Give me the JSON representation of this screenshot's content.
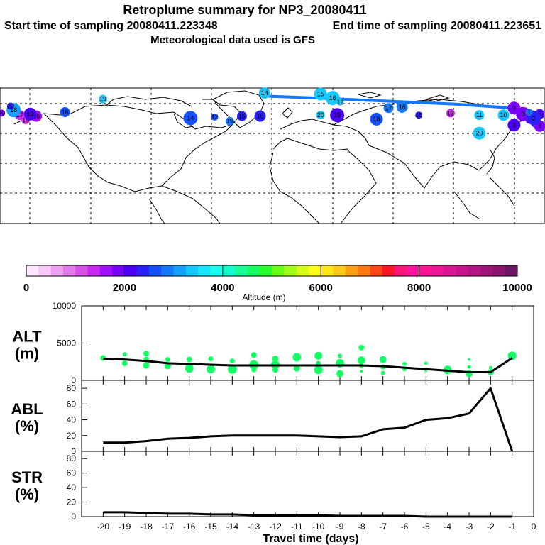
{
  "header": {
    "title": "Retroplume summary for NP3_20080411",
    "start_label": "Start time of sampling 20080411.223348",
    "end_label": "End time of sampling 20080411.223651",
    "met_label": "Meteorological data used is GFS"
  },
  "colorbar": {
    "label": "Altitude (m)",
    "ticks": [
      "0",
      "2000",
      "4000",
      "6000",
      "8000",
      "10000"
    ],
    "colors": [
      "#ffe6ff",
      "#f8c8f8",
      "#f0a0f0",
      "#e678ee",
      "#d850ea",
      "#c828f0",
      "#a010f8",
      "#7a00ff",
      "#4a00f8",
      "#2a20ff",
      "#1450ff",
      "#1478ff",
      "#14a0ff",
      "#14c8ff",
      "#14e6ff",
      "#14ffee",
      "#14ffc8",
      "#14ff96",
      "#14ff64",
      "#28ff28",
      "#64ff14",
      "#a0ff14",
      "#d2ff14",
      "#ffff14",
      "#ffe614",
      "#ffc814",
      "#ffa014",
      "#ff7814",
      "#ff4614",
      "#ff1428",
      "#ff1478",
      "#ff14a0",
      "#ff1496",
      "#f01496",
      "#dc1496",
      "#c8148c",
      "#b41482",
      "#a01478",
      "#8c146e",
      "#6e1464"
    ]
  },
  "map": {
    "plume_points": [
      {
        "day": "20",
        "lon": -179,
        "lat": 65,
        "color": "#7a00ff"
      },
      {
        "day": "19",
        "lon": -163,
        "lat": 58,
        "color": "#d850ea"
      },
      {
        "day": "17",
        "lon": -167,
        "lat": 63,
        "color": "#c828f0"
      },
      {
        "day": "16",
        "lon": -156,
        "lat": 62,
        "color": "#a010f8"
      },
      {
        "day": "13",
        "lon": -160,
        "lat": 64,
        "color": "#4a00f8"
      },
      {
        "day": "18",
        "lon": -171,
        "lat": 68,
        "color": "#14a0ff"
      },
      {
        "day": "20",
        "lon": -173,
        "lat": 72,
        "color": "#2a20ff"
      },
      {
        "day": "19",
        "lon": -112,
        "lat": 79,
        "color": "#14c8ff"
      },
      {
        "day": "16",
        "lon": -137,
        "lat": 66,
        "color": "#1450ff"
      },
      {
        "day": "14",
        "lon": -5,
        "lat": 85,
        "color": "#14c8ff"
      },
      {
        "day": "15",
        "lon": 32,
        "lat": 84,
        "color": "#14c8ff"
      },
      {
        "day": "16",
        "lon": 40,
        "lat": 80,
        "color": "#14c8ff"
      },
      {
        "day": "12",
        "lon": 45,
        "lat": 76,
        "color": "#14c8ff"
      },
      {
        "day": "20",
        "lon": 32,
        "lat": 63,
        "color": "#14c8ff"
      },
      {
        "day": "17",
        "lon": 77,
        "lat": 70,
        "color": "#1478ff"
      },
      {
        "day": "16",
        "lon": 86,
        "lat": 71,
        "color": "#1478ff"
      },
      {
        "day": "18",
        "lon": 69,
        "lat": 59,
        "color": "#1450ff"
      },
      {
        "day": "19",
        "lon": 43,
        "lat": 63,
        "color": "#4a00f8"
      },
      {
        "day": "18",
        "lon": 97,
        "lat": 63,
        "color": "#2a20ff"
      },
      {
        "day": "13",
        "lon": 118,
        "lat": 65,
        "color": "#c828f0"
      },
      {
        "day": "11",
        "lon": 137,
        "lat": 63,
        "color": "#14c8ff"
      },
      {
        "day": "10",
        "lon": 153,
        "lat": 63,
        "color": "#14c8ff"
      },
      {
        "day": "20",
        "lon": 137,
        "lat": 45,
        "color": "#14c8ff"
      },
      {
        "day": "14",
        "lon": -54,
        "lat": 60,
        "color": "#1450ff"
      },
      {
        "day": "12",
        "lon": -38,
        "lat": 61,
        "color": "#1450ff"
      },
      {
        "day": "19",
        "lon": -28,
        "lat": 57,
        "color": "#1478ff"
      },
      {
        "day": "15",
        "lon": -20,
        "lat": 62,
        "color": "#2a20ff"
      },
      {
        "day": "16",
        "lon": -8,
        "lat": 62,
        "color": "#2a20ff"
      },
      {
        "day": "9",
        "lon": 160,
        "lat": 70,
        "color": "#7a00ff"
      },
      {
        "day": "8",
        "lon": 166,
        "lat": 64,
        "color": "#7a00ff"
      },
      {
        "day": "7",
        "lon": 170,
        "lat": 58,
        "color": "#7a00ff"
      },
      {
        "day": "6",
        "lon": 174,
        "lat": 55,
        "color": "#2a20ff"
      },
      {
        "day": "5",
        "lon": 177,
        "lat": 64,
        "color": "#4a00f8"
      },
      {
        "day": "4",
        "lon": 177,
        "lat": 52,
        "color": "#7a00ff"
      },
      {
        "day": "3",
        "lon": 160,
        "lat": 53,
        "color": "#4a00f8"
      },
      {
        "day": "2",
        "lon": 173,
        "lat": 60,
        "color": "#2a20ff"
      },
      {
        "day": "1",
        "lon": 170,
        "lat": 66,
        "color": "#1478ff"
      }
    ],
    "trail": {
      "color": "#1478ff"
    }
  },
  "chart_data": [
    {
      "type": "line",
      "name": "ALT",
      "ylabel": "ALT",
      "yunit": "(m)",
      "ylim": [
        0,
        10000
      ],
      "yticks": [
        "0",
        "5000",
        "10000"
      ],
      "x": [
        -20,
        -19,
        -18,
        -17,
        -16,
        -15,
        -14,
        -13,
        -12,
        -11,
        -10,
        -9,
        -8,
        -7,
        -6,
        -5,
        -4,
        -3,
        -2,
        -1
      ],
      "values": [
        2900,
        2800,
        2600,
        2300,
        2200,
        2100,
        2000,
        2000,
        2000,
        2000,
        2000,
        2000,
        2000,
        1900,
        1700,
        1500,
        1300,
        1100,
        1100,
        3000
      ],
      "scatter_color": "#14ff64",
      "scatter_points": [
        [
          -20,
          3000
        ],
        [
          -19,
          3500
        ],
        [
          -19,
          2300
        ],
        [
          -18,
          3600
        ],
        [
          -18,
          2800
        ],
        [
          -18,
          2000
        ],
        [
          -17,
          2800
        ],
        [
          -17,
          1900
        ],
        [
          -16,
          2800
        ],
        [
          -16,
          1600
        ],
        [
          -15,
          2900
        ],
        [
          -15,
          1500
        ],
        [
          -14,
          2600
        ],
        [
          -14,
          1500
        ],
        [
          -13,
          3400
        ],
        [
          -13,
          2100
        ],
        [
          -13,
          1400
        ],
        [
          -12,
          2900
        ],
        [
          -12,
          2100
        ],
        [
          -12,
          1400
        ],
        [
          -11,
          3100
        ],
        [
          -11,
          1600
        ],
        [
          -10,
          3300
        ],
        [
          -10,
          2300
        ],
        [
          -10,
          1400
        ],
        [
          -9,
          3300
        ],
        [
          -9,
          2300
        ],
        [
          -9,
          900
        ],
        [
          -8,
          4400
        ],
        [
          -8,
          2700
        ],
        [
          -8,
          2000
        ],
        [
          -8,
          1200
        ],
        [
          -7,
          2800
        ],
        [
          -7,
          1800
        ],
        [
          -7,
          1000
        ],
        [
          -6,
          2200
        ],
        [
          -6,
          1500
        ],
        [
          -5,
          2300
        ],
        [
          -5,
          1300
        ],
        [
          -4,
          1400
        ],
        [
          -3,
          2800
        ],
        [
          -3,
          1800
        ],
        [
          -3,
          900
        ],
        [
          -2,
          1700
        ],
        [
          -2,
          1100
        ],
        [
          -1,
          3300
        ]
      ],
      "scatter_sizes": [
        6,
        4,
        6,
        6,
        6,
        7,
        5,
        7,
        6,
        10,
        5,
        10,
        5,
        11,
        6,
        11,
        5,
        7,
        10,
        6,
        10,
        7,
        9,
        5,
        10,
        4,
        10,
        8,
        6,
        9,
        5,
        2,
        8,
        5,
        4,
        4,
        4,
        3,
        2,
        10,
        2,
        3,
        8,
        3,
        7,
        10
      ]
    },
    {
      "type": "line",
      "name": "ABL",
      "ylabel": "ABL",
      "yunit": "(%)",
      "ylim": [
        0,
        90
      ],
      "yticks": [
        "0",
        "20",
        "40",
        "60",
        "80"
      ],
      "x": [
        -20,
        -19,
        -18,
        -17,
        -16,
        -15,
        -14,
        -13,
        -12,
        -11,
        -10,
        -9,
        -8,
        -7,
        -6,
        -5,
        -4,
        -3,
        -2,
        -1
      ],
      "values": [
        11,
        11,
        13,
        16,
        17,
        19,
        20,
        20,
        20,
        20,
        19,
        18,
        19,
        28,
        30,
        40,
        42,
        48,
        80,
        0
      ]
    },
    {
      "type": "line",
      "name": "STR",
      "ylabel": "STR",
      "yunit": "(%)",
      "ylim": [
        0,
        90
      ],
      "yticks": [
        "0",
        "20",
        "40",
        "60",
        "80"
      ],
      "x": [
        -20,
        -19,
        -18,
        -17,
        -16,
        -15,
        -14,
        -13,
        -12,
        -11,
        -10,
        -9,
        -8,
        -7,
        -6,
        -5,
        -4,
        -3,
        -2,
        -1
      ],
      "values": [
        6,
        6,
        5,
        4,
        4,
        3,
        3,
        2,
        2,
        2,
        2,
        1,
        1,
        1,
        1,
        0,
        0,
        0,
        0,
        0
      ],
      "xlabel": "Travel time (days)",
      "xticks": [
        "-20",
        "-19",
        "-18",
        "-17",
        "-16",
        "-15",
        "-14",
        "-13",
        "-12",
        "-11",
        "-10",
        "-9",
        "-8",
        "-7",
        "-6",
        "-5",
        "-4",
        "-3",
        "-2",
        "-1",
        "0"
      ]
    }
  ]
}
